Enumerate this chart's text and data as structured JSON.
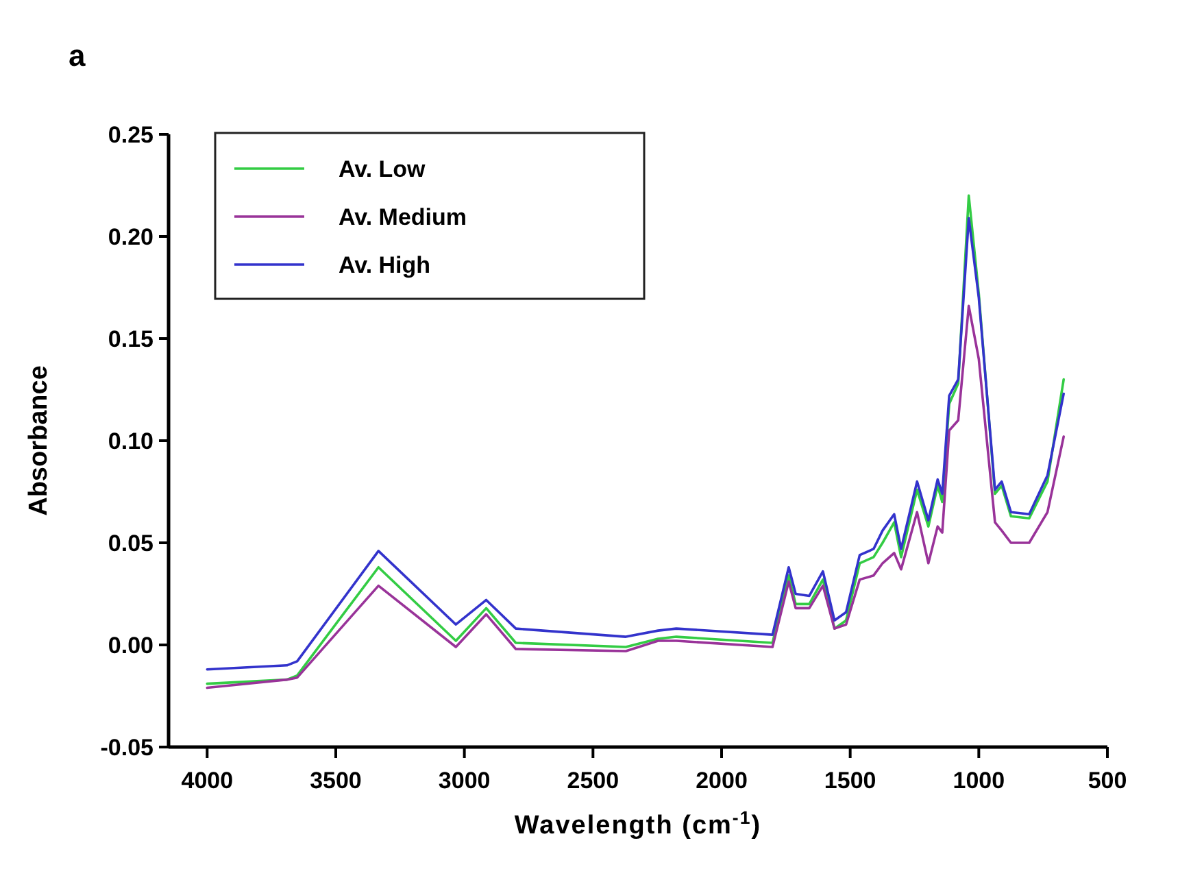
{
  "chart_data": {
    "type": "line",
    "title": "a",
    "xlabel": "Wavelength (cm$^{-1}$)",
    "ylabel": "Absorbance",
    "x": [
      4000,
      3690,
      3650,
      3334,
      3033,
      2915,
      2800,
      2372,
      2247,
      2176,
      1802,
      1739,
      1712,
      1659,
      1606,
      1561,
      1516,
      1463,
      1409,
      1374,
      1329,
      1302,
      1240,
      1196,
      1160,
      1142,
      1115,
      1080,
      1039,
      1000,
      937,
      911,
      875,
      804,
      733,
      670
    ],
    "series": [
      {
        "name": "Av. Low",
        "color": "#33cc44",
        "values": [
          -0.019,
          -0.017,
          -0.015,
          0.038,
          0.002,
          0.018,
          0.001,
          -0.001,
          0.003,
          0.004,
          0.001,
          0.034,
          0.02,
          0.02,
          0.032,
          0.008,
          0.012,
          0.04,
          0.043,
          0.05,
          0.06,
          0.043,
          0.076,
          0.058,
          0.078,
          0.07,
          0.118,
          0.128,
          0.22,
          0.172,
          0.074,
          0.078,
          0.063,
          0.062,
          0.08,
          0.13
        ]
      },
      {
        "name": "Av. Medium",
        "color": "#993399",
        "values": [
          -0.021,
          -0.017,
          -0.016,
          0.029,
          -0.001,
          0.015,
          -0.002,
          -0.003,
          0.002,
          0.002,
          -0.001,
          0.031,
          0.018,
          0.018,
          0.029,
          0.008,
          0.01,
          0.032,
          0.034,
          0.04,
          0.045,
          0.037,
          0.065,
          0.04,
          0.058,
          0.055,
          0.105,
          0.11,
          0.166,
          0.14,
          0.06,
          0.056,
          0.05,
          0.05,
          0.065,
          0.102
        ]
      },
      {
        "name": "Av. High",
        "color": "#3333cc",
        "values": [
          -0.012,
          -0.01,
          -0.008,
          0.046,
          0.01,
          0.022,
          0.008,
          0.004,
          0.007,
          0.008,
          0.005,
          0.038,
          0.025,
          0.024,
          0.036,
          0.012,
          0.016,
          0.044,
          0.047,
          0.056,
          0.064,
          0.047,
          0.08,
          0.061,
          0.081,
          0.074,
          0.122,
          0.13,
          0.209,
          0.17,
          0.076,
          0.08,
          0.065,
          0.064,
          0.083,
          0.123
        ]
      }
    ],
    "xlim": [
      4150,
      500
    ],
    "xticks": [
      4000,
      3500,
      3000,
      2500,
      2000,
      1500,
      1000,
      500
    ],
    "ylim": [
      -0.05,
      0.25
    ],
    "yticks": [
      {
        "value": -0.05,
        "label": "-0.05"
      },
      {
        "value": 0,
        "label": "0.00"
      },
      {
        "value": 0.05,
        "label": "0.05"
      },
      {
        "value": 0.1,
        "label": "0.10"
      },
      {
        "value": 0.15,
        "label": "0.15"
      },
      {
        "value": 0.2,
        "label": "0.20"
      },
      {
        "value": 0.25,
        "label": "0.25"
      }
    ],
    "grid": false,
    "legend": "top left",
    "marker": "none",
    "line_style": "solid"
  }
}
